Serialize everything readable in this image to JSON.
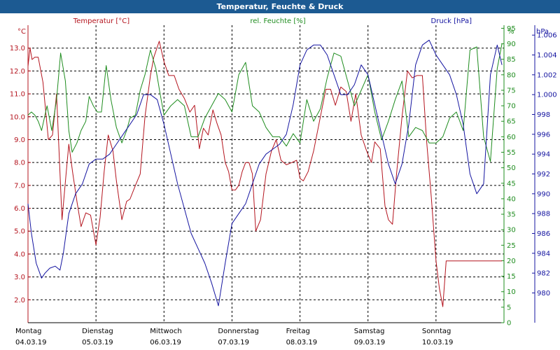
{
  "window_title": "Temperatur, Feuchte & Druck",
  "colors": {
    "background": "#ffffff",
    "titlebar": "#1c5a92",
    "temperature": "#b4141e",
    "humidity": "#1e8c1e",
    "pressure": "#1414a0",
    "grid": "#000000"
  },
  "chart_data": {
    "type": "line",
    "grid": true,
    "x_tick_labels": [
      {
        "day": "Montag",
        "date": "04.03.19"
      },
      {
        "day": "Dienstag",
        "date": "05.03.19"
      },
      {
        "day": "Mittwoch",
        "date": "06.03.19"
      },
      {
        "day": "Donnerstag",
        "date": "07.03.19"
      },
      {
        "day": "Freitag",
        "date": "08.03.19"
      },
      {
        "day": "Samstag",
        "date": "09.03.19"
      },
      {
        "day": "Sonntag",
        "date": "10.03.19"
      }
    ],
    "x_range_days": [
      0,
      7
    ],
    "axes": {
      "temperature": {
        "unit": "°C",
        "ylim": [
          1.0,
          14.0
        ],
        "ticks": [
          "2.0",
          "3.0",
          "4.0",
          "5.0",
          "6.0",
          "7.0",
          "8.0",
          "9.0",
          "10.0",
          "11.0",
          "12.0",
          "13.0"
        ]
      },
      "humidity": {
        "unit": "%",
        "ylim": [
          0,
          96
        ],
        "ticks": [
          "0",
          "5",
          "10",
          "15",
          "20",
          "25",
          "30",
          "35",
          "40",
          "45",
          "50",
          "55",
          "60",
          "65",
          "70",
          "75",
          "80",
          "85",
          "90",
          "95"
        ]
      },
      "pressure": {
        "unit": "hPa",
        "ylim": [
          977,
          1007
        ],
        "ticks": [
          "980",
          "982",
          "984",
          "986",
          "988",
          "990",
          "992",
          "994",
          "996",
          "998",
          "1.000",
          "1.002",
          "1.004",
          "1.006"
        ]
      }
    },
    "series": [
      {
        "name": "Temperatur [°C]",
        "axis": "temperature",
        "x": [
          0,
          0.03,
          0.06,
          0.1,
          0.15,
          0.22,
          0.3,
          0.36,
          0.42,
          0.5,
          0.56,
          0.6,
          0.66,
          0.72,
          0.78,
          0.85,
          0.92,
          1.0,
          1.06,
          1.12,
          1.18,
          1.25,
          1.3,
          1.38,
          1.45,
          1.5,
          1.58,
          1.65,
          1.72,
          1.8,
          1.85,
          1.93,
          2.0,
          2.07,
          2.15,
          2.22,
          2.3,
          2.38,
          2.45,
          2.52,
          2.58,
          2.65,
          2.72,
          2.78,
          2.84,
          2.9,
          2.95,
          3.0,
          3.05,
          3.1,
          3.15,
          3.2,
          3.25,
          3.3,
          3.35,
          3.42,
          3.5,
          3.58,
          3.65,
          3.72,
          3.8,
          3.88,
          3.95,
          4.0,
          4.05,
          4.12,
          4.2,
          4.3,
          4.38,
          4.45,
          4.52,
          4.6,
          4.68,
          4.75,
          4.82,
          4.9,
          4.98,
          5.05,
          5.1,
          5.18,
          5.25,
          5.3,
          5.36,
          5.42,
          5.5,
          5.58,
          5.65,
          5.72,
          5.8,
          5.86,
          5.93,
          6.0,
          6.05,
          6.1,
          6.15,
          6.22,
          6.28,
          6.32,
          6.38,
          6.45,
          6.52,
          6.58,
          6.62,
          6.67,
          6.73,
          6.78,
          6.82,
          6.86,
          6.9,
          6.94,
          6.97
        ],
        "values": [
          12.2,
          13.0,
          12.5,
          12.6,
          12.6,
          11.5,
          9.0,
          9.2,
          11.0,
          5.5,
          7.5,
          8.8,
          7.5,
          6.3,
          5.2,
          5.8,
          5.7,
          4.4,
          5.6,
          7.6,
          9.2,
          8.5,
          7.2,
          5.5,
          6.3,
          6.4,
          7.0,
          7.5,
          10.0,
          11.8,
          12.6,
          13.3,
          12.4,
          11.8,
          11.8,
          11.2,
          10.8,
          10.2,
          10.5,
          8.6,
          9.5,
          9.2,
          10.3,
          9.7,
          9.2,
          8.0,
          7.6,
          6.8,
          6.8,
          7.0,
          7.6,
          8.0,
          8.0,
          7.5,
          5.0,
          5.5,
          7.5,
          8.5,
          9.0,
          8.1,
          7.9,
          8.0,
          8.1,
          7.3,
          7.2,
          7.6,
          8.5,
          10.0,
          11.2,
          11.2,
          10.5,
          11.3,
          11.1,
          9.8,
          11.0,
          9.2,
          8.5,
          8.0,
          8.9,
          8.6,
          6.1,
          5.5,
          5.3,
          7.5,
          10.0,
          12.0,
          11.7,
          11.8,
          11.8,
          9.0,
          6.5,
          3.7,
          2.5,
          1.7,
          3.7,
          3.7,
          3.7,
          3.7,
          3.7,
          3.7,
          3.7,
          3.7,
          3.7,
          3.7,
          3.7,
          3.7,
          3.7,
          3.7,
          3.7,
          3.7,
          3.7
        ]
      },
      {
        "name": "rel. Feuchte [%]",
        "axis": "humidity",
        "x": [
          0,
          0.05,
          0.1,
          0.15,
          0.2,
          0.28,
          0.35,
          0.42,
          0.48,
          0.55,
          0.6,
          0.65,
          0.72,
          0.78,
          0.85,
          0.9,
          0.96,
          1.02,
          1.08,
          1.15,
          1.22,
          1.3,
          1.38,
          1.45,
          1.5,
          1.58,
          1.65,
          1.72,
          1.8,
          1.88,
          1.95,
          2.0,
          2.1,
          2.2,
          2.3,
          2.4,
          2.5,
          2.6,
          2.7,
          2.8,
          2.9,
          3.0,
          3.1,
          3.2,
          3.3,
          3.4,
          3.5,
          3.6,
          3.7,
          3.8,
          3.9,
          4.0,
          4.1,
          4.2,
          4.3,
          4.4,
          4.5,
          4.6,
          4.7,
          4.8,
          4.9,
          5.0,
          5.1,
          5.2,
          5.3,
          5.4,
          5.5,
          5.6,
          5.7,
          5.8,
          5.9,
          6.0,
          6.1,
          6.2,
          6.3,
          6.4,
          6.5,
          6.6,
          6.7,
          6.8,
          6.9,
          6.97
        ],
        "values": [
          67,
          68,
          67,
          65,
          62,
          70,
          62,
          72,
          87,
          78,
          62,
          55,
          58,
          62,
          65,
          73,
          70,
          68,
          68,
          83,
          72,
          63,
          58,
          62,
          66,
          67,
          75,
          80,
          88,
          82,
          73,
          67,
          70,
          72,
          70,
          60,
          60,
          66,
          70,
          74,
          72,
          68,
          80,
          84,
          70,
          68,
          63,
          60,
          60,
          57,
          61,
          58,
          72,
          65,
          69,
          79,
          87,
          86,
          78,
          70,
          75,
          80,
          68,
          59,
          65,
          72,
          78,
          60,
          63,
          62,
          58,
          58,
          60,
          66,
          68,
          62,
          88,
          89,
          60,
          52,
          82,
          90
        ]
      },
      {
        "name": "Druck [hPa]",
        "axis": "pressure",
        "x": [
          0,
          0.05,
          0.12,
          0.2,
          0.25,
          0.32,
          0.4,
          0.47,
          0.52,
          0.6,
          0.7,
          0.8,
          0.9,
          1.0,
          1.1,
          1.2,
          1.3,
          1.4,
          1.5,
          1.6,
          1.7,
          1.8,
          1.9,
          2.0,
          2.1,
          2.2,
          2.3,
          2.4,
          2.5,
          2.6,
          2.7,
          2.8,
          2.9,
          3.0,
          3.1,
          3.2,
          3.3,
          3.35,
          3.4,
          3.5,
          3.6,
          3.7,
          3.8,
          3.9,
          4.0,
          4.1,
          4.2,
          4.3,
          4.4,
          4.5,
          4.6,
          4.7,
          4.8,
          4.9,
          5.0,
          5.1,
          5.2,
          5.3,
          5.4,
          5.5,
          5.6,
          5.7,
          5.8,
          5.9,
          6.0,
          6.1,
          6.2,
          6.3,
          6.4,
          6.5,
          6.6,
          6.7,
          6.8,
          6.9,
          6.97
        ],
        "values": [
          989,
          986,
          983,
          981.5,
          982,
          982.5,
          982.7,
          982.3,
          984,
          988,
          990,
          991,
          993,
          993.5,
          993.5,
          994,
          995,
          996,
          997,
          998,
          1000,
          1000,
          999.5,
          997,
          994,
          991,
          988.5,
          986,
          984.5,
          983,
          981,
          978.7,
          983,
          987,
          988,
          989,
          991,
          992,
          993,
          994,
          994.5,
          995,
          996,
          999,
          1003,
          1004.5,
          1005,
          1005,
          1004,
          1002,
          1000,
          1000,
          1001,
          1003,
          1002,
          999,
          996,
          993,
          991,
          993,
          997,
          1003,
          1005,
          1005.5,
          1004,
          1003,
          1002,
          1000,
          997,
          992,
          990,
          991,
          1002,
          1005,
          1003
        ]
      }
    ],
    "legend": [
      {
        "label": "Temperatur [°C]",
        "position": "top-left"
      },
      {
        "label": "rel. Feuchte [%]",
        "position": "top-center"
      },
      {
        "label": "Druck [hPa]",
        "position": "top-right"
      }
    ]
  }
}
